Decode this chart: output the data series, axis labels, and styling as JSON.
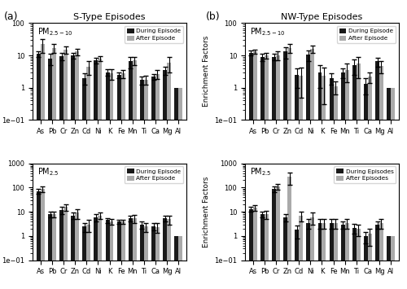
{
  "elements": [
    "As",
    "Pb",
    "Cr",
    "Zn",
    "Cd",
    "Ni",
    "K",
    "Fe",
    "Mn",
    "Ti",
    "Ca",
    "Mg",
    "Al"
  ],
  "panel_a_top": {
    "title": "S-Type Episodes",
    "label": "PM$_{2.5-10}$",
    "during": [
      11,
      8,
      9.5,
      10,
      2.0,
      7.0,
      3.0,
      2.5,
      6.5,
      1.7,
      2.2,
      3.5,
      1.0
    ],
    "after": [
      22,
      17,
      15,
      13,
      4.5,
      8.0,
      2.8,
      2.8,
      7.0,
      1.8,
      2.7,
      6.0,
      1.0
    ],
    "during_err": [
      2,
      3,
      2.5,
      2,
      0.8,
      1.5,
      0.7,
      0.5,
      2.5,
      0.5,
      0.5,
      1.0,
      0
    ],
    "after_err": [
      10,
      5,
      4,
      3,
      2.0,
      1.5,
      1.0,
      0.8,
      2.0,
      0.6,
      0.8,
      3.0,
      0
    ],
    "legend1": "During Episode",
    "legend2": "After Episode",
    "ylim": [
      0.1,
      100
    ],
    "yticks": [
      0.1,
      1,
      10,
      100
    ]
  },
  "panel_b_top": {
    "title": "NW-Type Episodes",
    "label": "PM$_{2.5-10}$",
    "during": [
      12,
      9,
      9,
      13,
      2.5,
      10.5,
      3.0,
      2.0,
      3.0,
      5.0,
      1.3,
      6.5,
      1.0
    ],
    "after": [
      13,
      10,
      10,
      17,
      2.3,
      16,
      2.3,
      1.1,
      3.5,
      5.5,
      2.2,
      4.8,
      1.0
    ],
    "during_err": [
      2,
      2.5,
      2,
      5,
      1.5,
      4,
      2,
      0.8,
      1.0,
      2.5,
      0.7,
      2,
      0
    ],
    "after_err": [
      2,
      2,
      3,
      5,
      1.8,
      4,
      2,
      0.5,
      2.0,
      3.5,
      0.8,
      2,
      0
    ],
    "legend1": "During Episode",
    "legend2": "After Episode",
    "ylim": [
      0.1,
      100
    ],
    "yticks": [
      0.1,
      1,
      10,
      100
    ]
  },
  "panel_a_bot": {
    "label": "PM$_{2.5}$",
    "during": [
      70,
      8,
      12,
      7,
      2.5,
      6,
      4.5,
      4.0,
      5.5,
      3.0,
      2.5,
      5.5,
      1.0
    ],
    "after": [
      90,
      8,
      16,
      9,
      3.0,
      7,
      4.0,
      4.0,
      5.5,
      2.5,
      2.3,
      5.0,
      1.0
    ],
    "during_err": [
      15,
      2,
      4,
      2,
      1.0,
      2,
      1.0,
      0.8,
      1.5,
      1.0,
      0.8,
      1.5,
      0
    ],
    "after_err": [
      25,
      2,
      5,
      4,
      1.5,
      2,
      1.0,
      0.8,
      2.0,
      1.0,
      1.0,
      2.0,
      0
    ],
    "legend1": "During Episode",
    "legend2": "After Episode",
    "ylim": [
      0.1,
      1000
    ],
    "yticks": [
      0.1,
      1,
      10,
      100,
      1000
    ]
  },
  "panel_b_bot": {
    "label": "PM$_{2.5}$",
    "during": [
      13,
      8,
      90,
      6,
      1.8,
      3.5,
      3.5,
      3.5,
      3.0,
      2.2,
      1.0,
      3.0,
      1.0
    ],
    "after": [
      15,
      8,
      110,
      280,
      7,
      6,
      3.5,
      3.5,
      3.5,
      2.0,
      1.2,
      3.5,
      1.0
    ],
    "during_err": [
      3,
      2,
      25,
      2,
      1.0,
      1.5,
      1.5,
      1.5,
      1.0,
      1.0,
      0.5,
      1.0,
      0
    ],
    "after_err": [
      4,
      3,
      30,
      150,
      3,
      3,
      1.5,
      1.5,
      1.5,
      1.0,
      0.8,
      1.5,
      0
    ],
    "legend1": "During Episodes",
    "legend2": "After Episodes",
    "ylim": [
      0.1,
      1000
    ],
    "yticks": [
      0.1,
      1,
      10,
      100,
      1000
    ]
  },
  "bar_width": 0.35,
  "color_during": "#1a1a1a",
  "color_after": "#aaaaaa",
  "ylabel": "Enrichment Factors",
  "fig_label_a": "(a)",
  "fig_label_b": "(b)",
  "suptitle_a": "S-Type Episodes",
  "suptitle_b": "NW-Type Episodes"
}
